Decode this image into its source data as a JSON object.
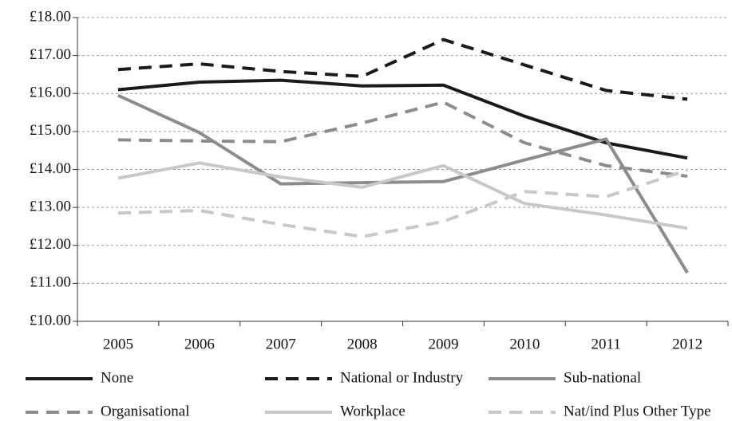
{
  "chart_data": {
    "type": "line",
    "categories": [
      "2005",
      "2006",
      "2007",
      "2008",
      "2009",
      "2010",
      "2011",
      "2012"
    ],
    "series": [
      {
        "name": "None",
        "color": "#1a1a1a",
        "dashed": false,
        "values": [
          16.1,
          16.3,
          16.35,
          16.2,
          16.22,
          15.4,
          14.7,
          14.3
        ]
      },
      {
        "name": "National or Industry",
        "color": "#1a1a1a",
        "dashed": true,
        "values": [
          16.63,
          16.78,
          16.58,
          16.45,
          17.42,
          16.75,
          16.08,
          15.85
        ]
      },
      {
        "name": "Sub-national",
        "color": "#8c8c8c",
        "dashed": false,
        "values": [
          15.95,
          14.97,
          13.62,
          13.65,
          13.68,
          14.25,
          14.8,
          11.28
        ]
      },
      {
        "name": "Organisational",
        "color": "#8c8c8c",
        "dashed": true,
        "values": [
          14.78,
          14.75,
          14.73,
          15.22,
          15.77,
          14.7,
          14.1,
          13.82
        ]
      },
      {
        "name": "Workplace",
        "color": "#c8c8c8",
        "dashed": false,
        "values": [
          13.77,
          14.17,
          13.8,
          13.53,
          14.1,
          13.1,
          12.8,
          12.45
        ]
      },
      {
        "name": "Nat/ind Plus Other Type",
        "color": "#c8c8c8",
        "dashed": true,
        "values": [
          12.85,
          12.92,
          12.55,
          12.23,
          12.63,
          13.42,
          13.28,
          13.98
        ]
      }
    ],
    "ylim": [
      10,
      18
    ],
    "yticks": [
      {
        "value": 10,
        "label": "£10.00"
      },
      {
        "value": 11,
        "label": "£11.00"
      },
      {
        "value": 12,
        "label": "£12.00"
      },
      {
        "value": 13,
        "label": "£13.00"
      },
      {
        "value": 14,
        "label": "£14.00"
      },
      {
        "value": 15,
        "label": "£15.00"
      },
      {
        "value": 16,
        "label": "£16.00"
      },
      {
        "value": 17,
        "label": "£17.00"
      },
      {
        "value": 18,
        "label": "£18.00"
      }
    ],
    "grid": true,
    "legend": "bottom"
  }
}
